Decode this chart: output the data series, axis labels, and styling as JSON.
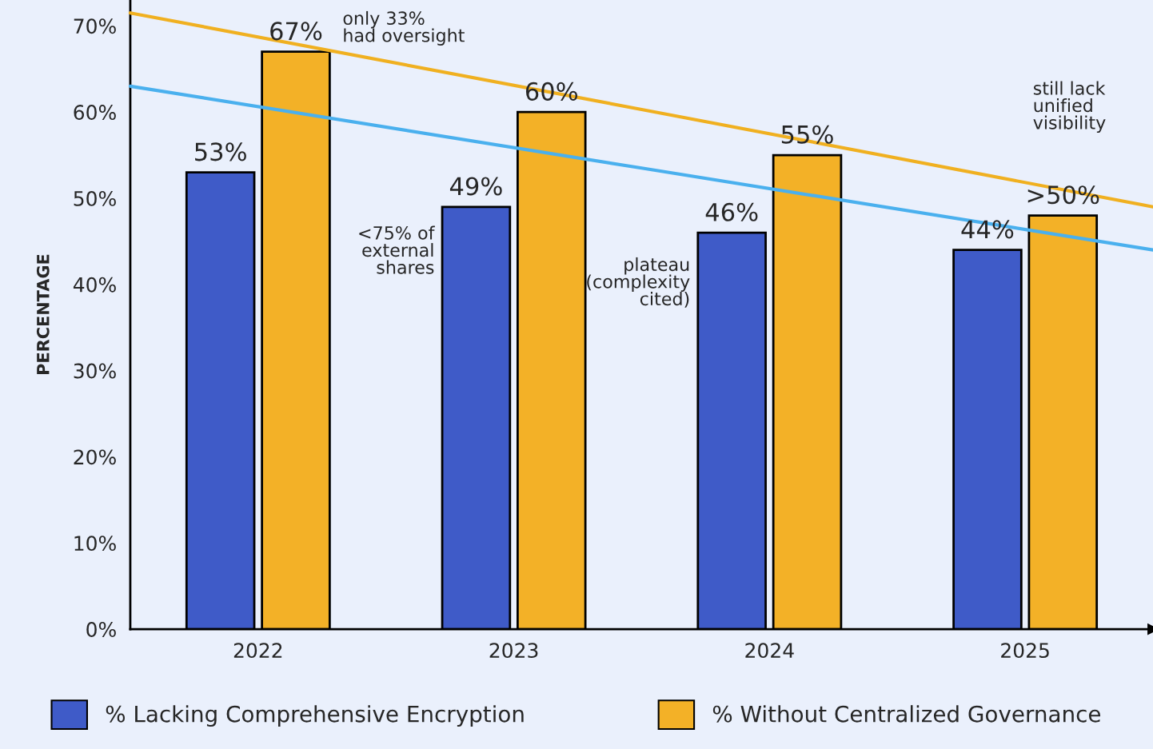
{
  "chart_data": {
    "type": "bar",
    "ylabel": "PERCENTAGE",
    "x": [
      2022,
      2023,
      2024,
      2025
    ],
    "xlim": [
      2021.5,
      2025.5
    ],
    "xticks": [
      2022,
      2023,
      2024,
      2025
    ],
    "ylim": [
      0,
      73
    ],
    "yticks": [
      {
        "value": 0,
        "label": "0%"
      },
      {
        "value": 10,
        "label": "10%"
      },
      {
        "value": 20,
        "label": "20%"
      },
      {
        "value": 30,
        "label": "30%"
      },
      {
        "value": 40,
        "label": "40%"
      },
      {
        "value": 50,
        "label": "50%"
      },
      {
        "value": 60,
        "label": "60%"
      },
      {
        "value": 70,
        "label": "70%"
      }
    ],
    "series": [
      {
        "name": "% Lacking Comprehensive Encryption",
        "color": "#3f5bc8",
        "values": [
          53,
          49,
          46,
          44
        ],
        "value_labels": [
          "53%",
          "49%",
          "46%",
          "44%"
        ]
      },
      {
        "name": "% Without Centralized Governance",
        "color": "#f3b127",
        "values": [
          67,
          60,
          55,
          48
        ],
        "value_labels": [
          "67%",
          "60%",
          "55%",
          ">50%"
        ]
      },
      {
        "type": "line",
        "color": "#f0b020",
        "x": [
          2021.5,
          2023.5,
          2025.5
        ],
        "values": [
          71.5,
          60.3,
          49
        ]
      },
      {
        "type": "line",
        "color": "#4ab0ee",
        "x": [
          2021.5,
          2023.5,
          2025.5
        ],
        "values": [
          63,
          53.5,
          44
        ]
      }
    ],
    "annotations": [
      "only 33%\nhad oversight",
      "<75% of\nexternal\nshares",
      "plateau\n(complexity\ncited)",
      "still lack\nunified\nvisibility"
    ],
    "legend": "bottom",
    "grid": false
  }
}
